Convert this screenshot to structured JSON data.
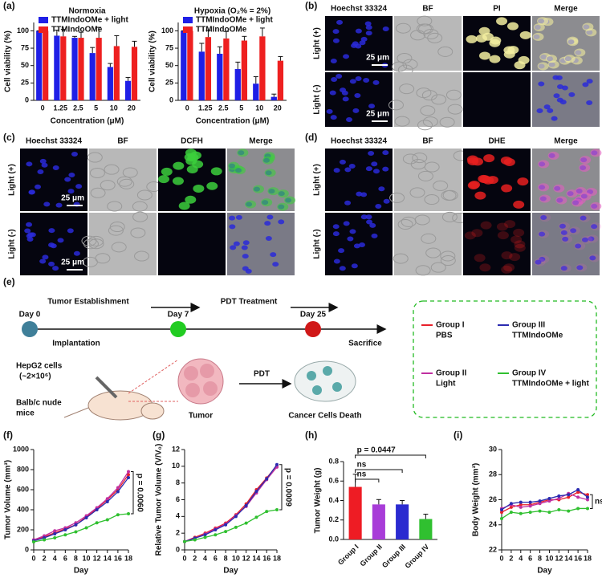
{
  "letters": [
    "(a)",
    "(b)",
    "(c)",
    "(d)",
    "(e)",
    "(f)",
    "(g)",
    "(h)",
    "(i)"
  ],
  "micro": {
    "b": {
      "columns": [
        "Hoechst 33324",
        "BF",
        "PI",
        "Merge"
      ],
      "rows": [
        "Light (+)",
        "Light (-)"
      ],
      "scale": "25 μm"
    },
    "c": {
      "columns": [
        "Hoechst 33324",
        "BF",
        "DCFH",
        "Merge"
      ],
      "rows": [
        "Light (+)",
        "Light (-)"
      ],
      "scale": "25 μm"
    },
    "d": {
      "columns": [
        "Hoechst 33324",
        "BF",
        "DHE",
        "Merge"
      ],
      "rows": [
        "Light (+)",
        "Light (-)"
      ]
    }
  },
  "schematic": {
    "days": [
      "Day 0",
      "Day 7",
      "Day 25"
    ],
    "phases": [
      "Tumor Establishment",
      "PDT Treatment"
    ],
    "events": [
      "Implantation",
      "Sacrifice"
    ],
    "cells": [
      "HepG2 cells",
      "(~2×10⁶)"
    ],
    "mice": [
      "Balb/c nude",
      "mice"
    ],
    "pdt": "PDT",
    "tumor": "Tumor",
    "death": "Cancer Cells Death",
    "legend_sub": [
      "PBS",
      "Light",
      "TTMIndoOMe",
      "TTMIndoOMe + light"
    ]
  },
  "chart_data": [
    {
      "type": "bar",
      "title": "Normoxia",
      "x_label": "Concentration (μM)",
      "y_label": "Cell viability (%)",
      "categories": [
        "0",
        "1.25",
        "2.5",
        "5",
        "10",
        "20"
      ],
      "series": [
        {
          "name": "TTMIndoOMe + light",
          "color": "#1f1fe6",
          "values": [
            100,
            93,
            90,
            68,
            48,
            28
          ],
          "errors": [
            0,
            8,
            2,
            8,
            5,
            5
          ]
        },
        {
          "name": "TTMIndoOMe",
          "color": "#ee2020",
          "values": [
            100,
            92,
            90,
            90,
            78,
            77
          ],
          "errors": [
            0,
            10,
            8,
            15,
            15,
            8
          ]
        }
      ],
      "ylim": [
        0,
        112
      ],
      "yticks": [
        0,
        25,
        50,
        75,
        100
      ]
    },
    {
      "type": "bar",
      "title": "Hypoxia (O₂% = 2%)",
      "x_label": "Concentration (μM)",
      "y_label": "Cell viability (%)",
      "categories": [
        "0",
        "1.25",
        "2.5",
        "5",
        "10",
        "20"
      ],
      "series": [
        {
          "name": "TTMIndoOMe + light",
          "color": "#1f1fe6",
          "values": [
            100,
            70,
            67,
            45,
            24,
            5
          ],
          "errors": [
            0,
            12,
            10,
            10,
            10,
            4
          ]
        },
        {
          "name": "TTMIndoOMe",
          "color": "#ee2020",
          "values": [
            100,
            91,
            89,
            86,
            92,
            57
          ],
          "errors": [
            0,
            10,
            10,
            6,
            12,
            6
          ]
        }
      ],
      "ylim": [
        0,
        112
      ],
      "yticks": [
        0,
        25,
        50,
        75,
        100
      ]
    },
    {
      "type": "line",
      "x_label": "Day",
      "y_label": "Tumor Volume (mm³)",
      "annotation": "p = 0.0060",
      "x": [
        0,
        2,
        4,
        6,
        8,
        10,
        12,
        14,
        16,
        18
      ],
      "series": [
        {
          "name": "Group I",
          "color": "#e8202a",
          "values": [
            100,
            130,
            170,
            210,
            250,
            330,
            410,
            500,
            600,
            750
          ]
        },
        {
          "name": "Group II",
          "color": "#c02fa0",
          "values": [
            100,
            140,
            190,
            220,
            270,
            340,
            420,
            510,
            620,
            780
          ]
        },
        {
          "name": "Group III",
          "color": "#2b2bb0",
          "values": [
            90,
            120,
            160,
            200,
            250,
            320,
            400,
            480,
            580,
            720
          ]
        },
        {
          "name": "Group IV",
          "color": "#30c030",
          "values": [
            80,
            100,
            120,
            150,
            180,
            220,
            270,
            300,
            350,
            360
          ]
        }
      ],
      "xlim": [
        0,
        18
      ],
      "xticks": [
        0,
        2,
        4,
        6,
        8,
        10,
        12,
        14,
        16,
        18
      ],
      "ylim": [
        0,
        1000
      ],
      "yticks": [
        0,
        200,
        400,
        600,
        800,
        1000
      ]
    },
    {
      "type": "line",
      "x_label": "Day",
      "y_label": "Relative Tumor Volume (V/V₀)",
      "annotation": "p = 0.0009",
      "x": [
        0,
        2,
        4,
        6,
        8,
        10,
        12,
        14,
        16,
        18
      ],
      "series": [
        {
          "color": "#e8202a",
          "values": [
            1,
            1.5,
            2,
            2.6,
            3.2,
            4.2,
            5.5,
            7.2,
            8.6,
            10.1
          ]
        },
        {
          "color": "#c02fa0",
          "values": [
            1,
            1.4,
            1.9,
            2.5,
            3.1,
            4.1,
            5.2,
            6.8,
            8.4,
            9.9
          ]
        },
        {
          "color": "#2b2bb0",
          "values": [
            1,
            1.4,
            1.8,
            2.4,
            3.0,
            4.0,
            5.3,
            7.0,
            8.5,
            10.2
          ]
        },
        {
          "color": "#30c030",
          "values": [
            1,
            1.2,
            1.5,
            1.8,
            2.2,
            2.7,
            3.2,
            3.9,
            4.6,
            4.8
          ]
        }
      ],
      "xlim": [
        0,
        18
      ],
      "xticks": [
        0,
        2,
        4,
        6,
        8,
        10,
        12,
        14,
        16,
        18
      ],
      "ylim": [
        0,
        12
      ],
      "yticks": [
        0,
        2,
        4,
        6,
        8,
        10,
        12
      ]
    },
    {
      "type": "bar",
      "y_label": "Tumor Weight (g)",
      "annotations": [
        "p = 0.0447",
        "ns",
        "ns"
      ],
      "categories": [
        "Group I",
        "Group II",
        "Group III",
        "Group IV"
      ],
      "values": [
        0.54,
        0.36,
        0.36,
        0.21
      ],
      "errors": [
        0.13,
        0.05,
        0.04,
        0.05
      ],
      "colors": [
        "#ee1c24",
        "#a83cd8",
        "#2a2ad0",
        "#30c030"
      ],
      "ylim": [
        0,
        0.8
      ],
      "yticks": [
        {
          "value": 0,
          "label": "0.0"
        },
        0.2,
        0.4,
        0.6,
        0.8
      ]
    },
    {
      "type": "line",
      "x_label": "Day",
      "y_label": "Body Weight (mm³)",
      "annotation": "ns",
      "x": [
        0,
        2,
        4,
        6,
        8,
        10,
        12,
        14,
        16,
        18
      ],
      "series": [
        {
          "color": "#e8202a",
          "values": [
            25,
            25.4,
            25.6,
            25.6,
            25.8,
            26,
            26,
            26.2,
            26.6,
            26.4
          ]
        },
        {
          "color": "#c02fa0",
          "values": [
            25.3,
            25.6,
            25.4,
            25.5,
            25.7,
            25.9,
            26.1,
            26.5,
            26.2,
            26
          ]
        },
        {
          "color": "#2b2bb0",
          "values": [
            25.2,
            25.7,
            25.8,
            25.8,
            25.9,
            26.1,
            26.3,
            26.4,
            26.8,
            26.2
          ]
        },
        {
          "color": "#30c030",
          "values": [
            24.5,
            25,
            24.9,
            25,
            25.1,
            25,
            25.2,
            25.1,
            25.3,
            25.3
          ]
        }
      ],
      "xlim": [
        0,
        18
      ],
      "xticks": [
        0,
        2,
        4,
        6,
        8,
        10,
        12,
        14,
        16,
        18
      ],
      "ylim": [
        22,
        30
      ],
      "yticks": [
        22,
        24,
        26,
        28,
        30
      ]
    }
  ]
}
